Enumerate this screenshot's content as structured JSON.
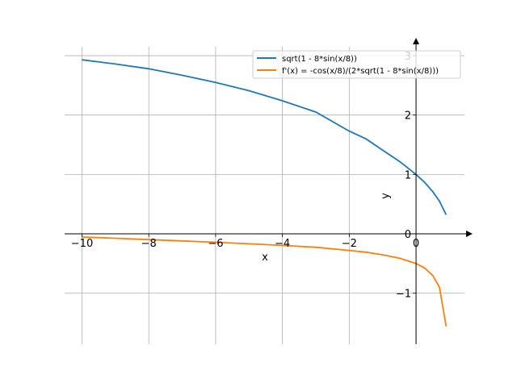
{
  "chart_data": {
    "type": "line",
    "title": "",
    "xlabel": "x",
    "ylabel": "y",
    "xlim": [
      -10.52,
      1.45
    ],
    "ylim": [
      -1.86,
      3.15
    ],
    "grid": true,
    "legend_position": "top-right",
    "xticks": [
      -10,
      -8,
      -6,
      -4,
      -2,
      0
    ],
    "xtick_labels": [
      "−10",
      "−8",
      "−6",
      "−4",
      "−2",
      "0"
    ],
    "yticks": [
      -1,
      0,
      1,
      2,
      3
    ],
    "ytick_labels": [
      "−1",
      "0",
      "1",
      "2",
      "3"
    ],
    "x": [
      -10,
      -9,
      -8,
      -7,
      -6,
      -5,
      -4,
      -3,
      -2,
      -1.5,
      -1,
      -0.5,
      0,
      0.25,
      0.5,
      0.7,
      0.9
    ],
    "series": [
      {
        "name": "sqrt(1 - 8*sin(x/8))",
        "color": "#1f77b4",
        "values": [
          2.93,
          2.86,
          2.78,
          2.67,
          2.55,
          2.41,
          2.24,
          2.05,
          1.73,
          1.6,
          1.41,
          1.22,
          1.0,
          0.87,
          0.71,
          0.55,
          0.32
        ]
      },
      {
        "name": "f'(x) = -cos(x/8)/(2*sqrt(1 - 8*sin(x/8)))",
        "color": "#ff7f0e",
        "values": [
          -0.054,
          -0.075,
          -0.097,
          -0.12,
          -0.143,
          -0.168,
          -0.196,
          -0.227,
          -0.28,
          -0.31,
          -0.353,
          -0.41,
          -0.5,
          -0.574,
          -0.7,
          -0.9,
          -1.56
        ]
      }
    ]
  }
}
